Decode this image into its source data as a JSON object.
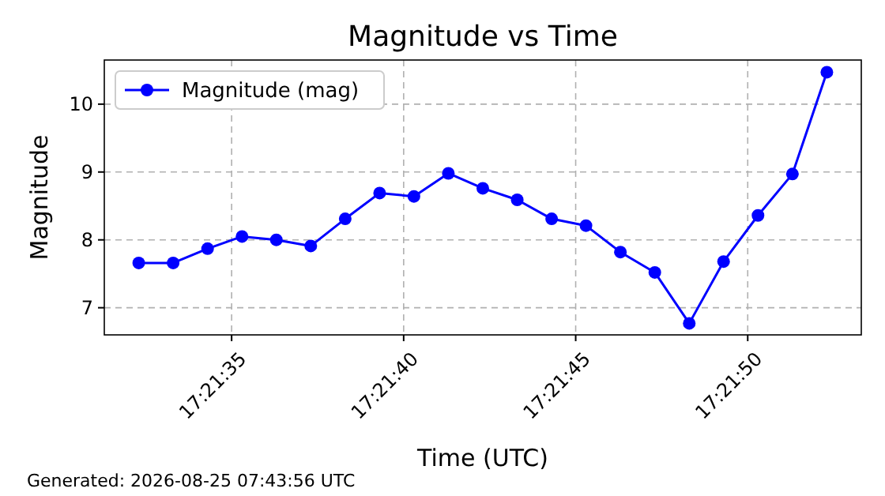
{
  "chart_data": {
    "type": "line",
    "title": "Magnitude vs Time",
    "xlabel": "Time (UTC)",
    "ylabel": "Magnitude",
    "x": [
      17.358972,
      17.35925,
      17.359528,
      17.359806,
      17.360083,
      17.360361,
      17.360639,
      17.360917,
      17.361194,
      17.361472,
      17.36175,
      17.362028,
      17.362306,
      17.362583,
      17.362861,
      17.363139,
      17.363417,
      17.363694,
      17.363972,
      17.36425,
      17.364528
    ],
    "series": [
      {
        "name": "Magnitude (mag)",
        "color": "#0000ff",
        "values": [
          7.66,
          7.66,
          7.87,
          8.05,
          8.0,
          7.91,
          8.31,
          8.69,
          8.64,
          8.98,
          8.76,
          8.59,
          8.31,
          8.21,
          7.82,
          7.52,
          6.77,
          7.68,
          8.36,
          8.97,
          10.47
        ]
      }
    ],
    "xlim": [
      17.358694,
      17.364806
    ],
    "xticks": [
      {
        "value": 17.359722,
        "label": "17:21:35"
      },
      {
        "value": 17.361111,
        "label": "17:21:40"
      },
      {
        "value": 17.3625,
        "label": "17:21:45"
      },
      {
        "value": 17.363889,
        "label": "17:21:50"
      }
    ],
    "ylim": [
      6.6,
      10.65
    ],
    "yticks": [
      7,
      8,
      9,
      10
    ],
    "grid": true,
    "legend": "top left",
    "marker": "circle",
    "line_style": "solid",
    "annotations": [
      "Generated: 2026-08-25 07:43:56 UTC"
    ]
  }
}
